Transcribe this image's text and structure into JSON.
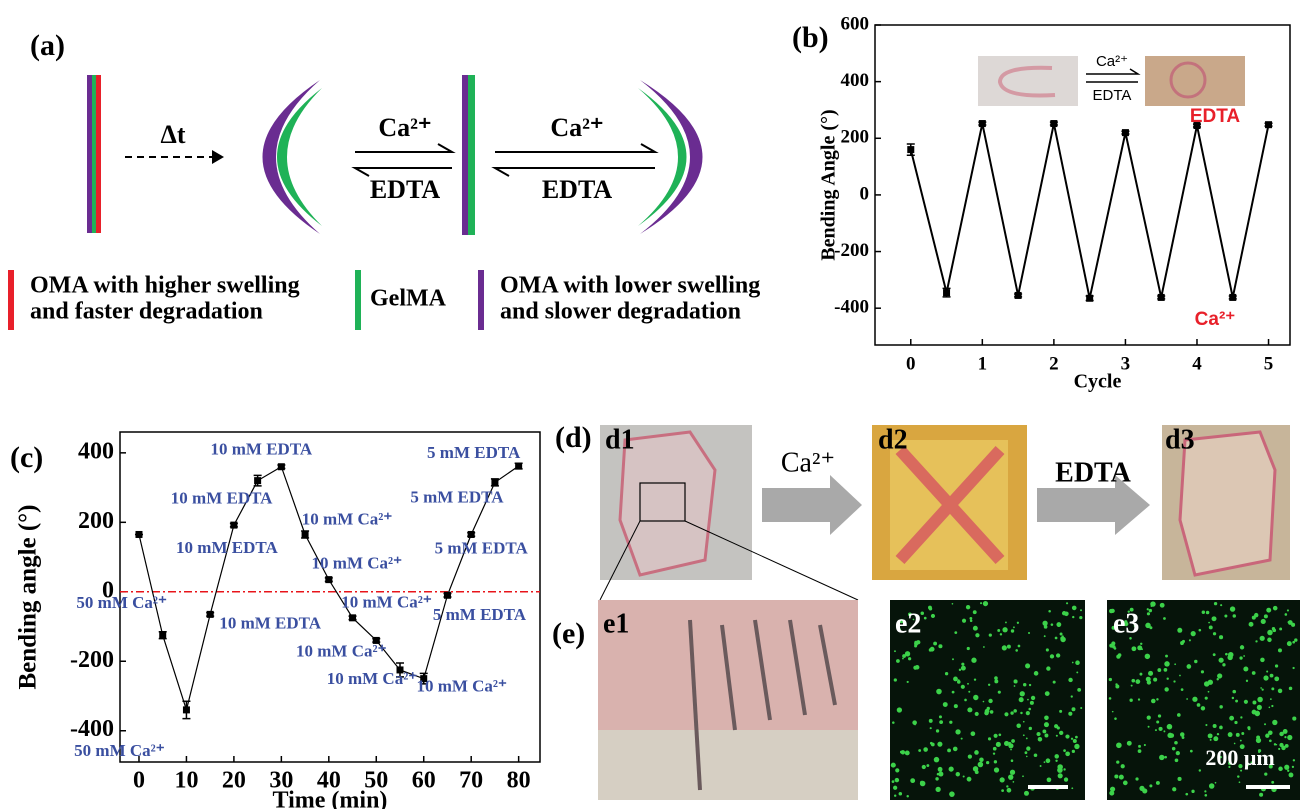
{
  "panel_labels": [
    "(a)",
    "(b)",
    "(c)",
    "(d)",
    "(e)"
  ],
  "diagram": {
    "delay": "Δt",
    "step1_forward": "Ca²⁺",
    "step1_reverse": "EDTA",
    "step2_forward": "Ca²⁺",
    "step2_reverse": "EDTA"
  },
  "legend": [
    {
      "color": "#e8202a",
      "lines": [
        "OMA with higher swelling",
        "and faster degradation"
      ]
    },
    {
      "color": "#1fb257",
      "lines": [
        "GelMA"
      ]
    },
    {
      "color": "#6a2c91",
      "lines": [
        "OMA with lower swelling",
        "and slower degradation"
      ]
    }
  ],
  "inset": {
    "forward": "Ca²⁺",
    "reverse": "EDTA"
  },
  "photo_labels": [
    "d1",
    "d2",
    "d3",
    "e1",
    "e2",
    "e3"
  ],
  "photo_arrows": [
    "Ca²⁺",
    "EDTA"
  ],
  "scale_bar": "200 μm",
  "chart_data": [
    {
      "type": "line",
      "xlabel": "Cycle",
      "ylabel": "Bending Angle (°)",
      "x": [
        0,
        0.5,
        1,
        1.5,
        2,
        2.5,
        3,
        3.5,
        4,
        4.5,
        5
      ],
      "values": [
        160,
        -345,
        252,
        -355,
        252,
        -365,
        220,
        -362,
        245,
        -362,
        248
      ],
      "errors": [
        20,
        15,
        5,
        5,
        5,
        8,
        5,
        5,
        5,
        5,
        5
      ],
      "color": "#000000",
      "xlim": [
        -0.5,
        5.3
      ],
      "xticks": [
        0,
        1,
        2,
        3,
        4,
        5
      ],
      "ylim": [
        -530,
        600
      ],
      "yticks": [
        -400,
        -200,
        0,
        200,
        400,
        600
      ],
      "annotations": [
        {
          "text": "EDTA",
          "color": "#e8202a"
        },
        {
          "text": "Ca²⁺",
          "color": "#e8202a"
        }
      ]
    },
    {
      "type": "line",
      "xlabel": "Time (min)",
      "ylabel": "Bending angle (°)",
      "x": [
        0,
        5,
        10,
        15,
        20,
        25,
        30,
        35,
        40,
        45,
        50,
        55,
        60,
        65,
        70,
        75,
        80
      ],
      "values": [
        165,
        -125,
        -340,
        -65,
        192,
        320,
        360,
        165,
        35,
        -75,
        -140,
        -225,
        -250,
        -10,
        165,
        315,
        362
      ],
      "errors": [
        0,
        10,
        25,
        5,
        5,
        15,
        5,
        10,
        5,
        5,
        5,
        20,
        15,
        5,
        5,
        10,
        8
      ],
      "color": "#000000",
      "point_labels": [
        null,
        "50 mM Ca²⁺",
        "50 mM Ca²⁺",
        "10 mM EDTA",
        "10 mM EDTA",
        "10 mM EDTA",
        "10 mM EDTA",
        "10 mM Ca²⁺",
        "10 mM Ca²⁺",
        "10 mM Ca²⁺",
        "10 mM Ca²⁺",
        "10 mM Ca²⁺",
        "10 mM Ca²⁺",
        "5 mM EDTA",
        "5 mM EDTA",
        "5 mM EDTA",
        "5 mM EDTA"
      ],
      "label_color": "#3a4fa0",
      "reference_line": {
        "y": 0,
        "color": "#e8141a"
      },
      "xlim": [
        -4,
        84.5
      ],
      "xticks": [
        0,
        10,
        20,
        30,
        40,
        50,
        60,
        70,
        80
      ],
      "ylim": [
        -490,
        460
      ],
      "yticks": [
        -400,
        -200,
        0,
        200,
        400
      ]
    }
  ]
}
